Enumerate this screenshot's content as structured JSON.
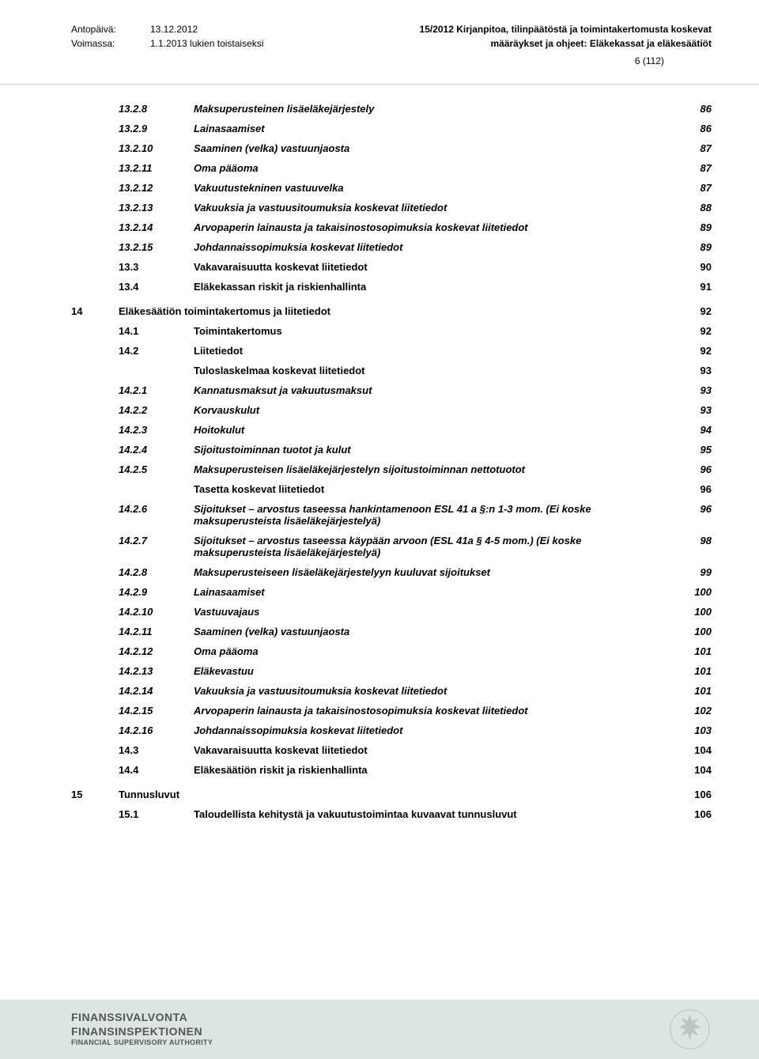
{
  "header": {
    "issued_label": "Antopäivä:",
    "issued_value": "13.12.2012",
    "valid_label": "Voimassa:",
    "valid_value": "1.1.2013 lukien toistaiseksi",
    "title_line1": "15/2012 Kirjanpitoa, tilinpäätöstä ja toimintakertomusta koskevat",
    "title_line2": "määräykset ja ohjeet: Eläkekassat ja eläkesäätiöt",
    "page_indicator": "6 (112)"
  },
  "toc": [
    {
      "chap": "",
      "num": "13.2.8",
      "title": "Maksuperusteinen lisäeläkejärjestely",
      "page": "86",
      "style": "bolditalic"
    },
    {
      "chap": "",
      "num": "13.2.9",
      "title": "Lainasaamiset",
      "page": "86",
      "style": "bolditalic"
    },
    {
      "chap": "",
      "num": "13.2.10",
      "title": "Saaminen (velka) vastuunjaosta",
      "page": "87",
      "style": "bolditalic"
    },
    {
      "chap": "",
      "num": "13.2.11",
      "title": "Oma pääoma",
      "page": "87",
      "style": "bolditalic"
    },
    {
      "chap": "",
      "num": "13.2.12",
      "title": "Vakuutustekninen vastuuvelka",
      "page": "87",
      "style": "bolditalic"
    },
    {
      "chap": "",
      "num": "13.2.13",
      "title": "Vakuuksia ja vastuusitoumuksia koskevat liitetiedot",
      "page": "88",
      "style": "bolditalic"
    },
    {
      "chap": "",
      "num": "13.2.14",
      "title": "Arvopaperin lainausta ja takaisinostosopimuksia koskevat liitetiedot",
      "page": "89",
      "style": "bolditalic"
    },
    {
      "chap": "",
      "num": "13.2.15",
      "title": "Johdannaissopimuksia koskevat liitetiedot",
      "page": "89",
      "style": "bolditalic"
    },
    {
      "chap": "",
      "num": "13.3",
      "title": "Vakavaraisuutta koskevat liitetiedot",
      "page": "90",
      "style": "bold"
    },
    {
      "chap": "",
      "num": "13.4",
      "title": "Eläkekassan riskit ja riskienhallinta",
      "page": "91",
      "style": "bold"
    },
    {
      "spacer": true
    },
    {
      "chap": "14",
      "num": "",
      "title": "Eläkesäätiön toimintakertomus ja liitetiedot",
      "page": "92",
      "style": "bold",
      "chapter_row": true
    },
    {
      "chap": "",
      "num": "14.1",
      "title": "Toimintakertomus",
      "page": "92",
      "style": "bold"
    },
    {
      "chap": "",
      "num": "14.2",
      "title": "Liitetiedot",
      "page": "92",
      "style": "bold"
    },
    {
      "chap": "",
      "num": "",
      "title": "Tuloslaskelmaa koskevat liitetiedot",
      "page": "93",
      "style": "bold"
    },
    {
      "chap": "",
      "num": "14.2.1",
      "title": "Kannatusmaksut ja vakuutusmaksut",
      "page": "93",
      "style": "bolditalic"
    },
    {
      "chap": "",
      "num": "14.2.2",
      "title": "Korvauskulut",
      "page": "93",
      "style": "bolditalic"
    },
    {
      "chap": "",
      "num": "14.2.3",
      "title": "Hoitokulut",
      "page": "94",
      "style": "bolditalic"
    },
    {
      "chap": "",
      "num": "14.2.4",
      "title": "Sijoitustoiminnan tuotot ja kulut",
      "page": "95",
      "style": "bolditalic"
    },
    {
      "chap": "",
      "num": "14.2.5",
      "title": "Maksuperusteisen lisäeläkejärjestelyn sijoitustoiminnan nettotuotot",
      "page": "96",
      "style": "bolditalic"
    },
    {
      "chap": "",
      "num": "",
      "title": "Tasetta koskevat liitetiedot",
      "page": "96",
      "style": "bold"
    },
    {
      "chap": "",
      "num": "14.2.6",
      "title": "Sijoitukset – arvostus taseessa hankintamenoon ESL 41 a §:n 1-3 mom. (Ei koske maksuperusteista lisäeläkejärjestelyä)",
      "page": "96",
      "style": "bolditalic"
    },
    {
      "chap": "",
      "num": "14.2.7",
      "title": "Sijoitukset – arvostus taseessa käypään arvoon (ESL 41a § 4-5 mom.) (Ei koske maksuperusteista lisäeläkejärjestelyä)",
      "page": "98",
      "style": "bolditalic"
    },
    {
      "chap": "",
      "num": "14.2.8",
      "title": "Maksuperusteiseen lisäeläkejärjestelyyn kuuluvat sijoitukset",
      "page": "99",
      "style": "bolditalic"
    },
    {
      "chap": "",
      "num": "14.2.9",
      "title": "Lainasaamiset",
      "page": "100",
      "style": "bolditalic"
    },
    {
      "chap": "",
      "num": "14.2.10",
      "title": "Vastuuvajaus",
      "page": "100",
      "style": "bolditalic"
    },
    {
      "chap": "",
      "num": "14.2.11",
      "title": "Saaminen (velka) vastuunjaosta",
      "page": "100",
      "style": "bolditalic"
    },
    {
      "chap": "",
      "num": "14.2.12",
      "title": "Oma pääoma",
      "page": "101",
      "style": "bolditalic"
    },
    {
      "chap": "",
      "num": "14.2.13",
      "title": "Eläkevastuu",
      "page": "101",
      "style": "bolditalic"
    },
    {
      "chap": "",
      "num": "14.2.14",
      "title": "Vakuuksia ja vastuusitoumuksia koskevat liitetiedot",
      "page": "101",
      "style": "bolditalic"
    },
    {
      "chap": "",
      "num": "14.2.15",
      "title": "Arvopaperin lainausta ja takaisinostosopimuksia koskevat liitetiedot",
      "page": "102",
      "style": "bolditalic"
    },
    {
      "chap": "",
      "num": "14.2.16",
      "title": "Johdannaissopimuksia koskevat liitetiedot",
      "page": "103",
      "style": "bolditalic"
    },
    {
      "chap": "",
      "num": "14.3",
      "title": "Vakavaraisuutta koskevat liitetiedot",
      "page": "104",
      "style": "bold"
    },
    {
      "chap": "",
      "num": "14.4",
      "title": "Eläkesäätiön riskit ja riskienhallinta",
      "page": "104",
      "style": "bold"
    },
    {
      "spacer": true
    },
    {
      "chap": "15",
      "num": "",
      "title": "Tunnusluvut",
      "page": "106",
      "style": "bold",
      "chapter_row": true
    },
    {
      "chap": "",
      "num": "15.1",
      "title": "Taloudellista kehitystä ja vakuutustoimintaa kuvaavat tunnusluvut",
      "page": "106",
      "style": "bold"
    }
  ],
  "footer": {
    "line1": "FINANSSIVALVONTA",
    "line2": "FINANSINSPEKTIONEN",
    "line3": "FINANCIAL SUPERVISORY AUTHORITY"
  },
  "colors": {
    "footer_bg": "#dbe6e0",
    "text": "#000000",
    "divider": "#cccccc",
    "footer_text": "#555555"
  }
}
